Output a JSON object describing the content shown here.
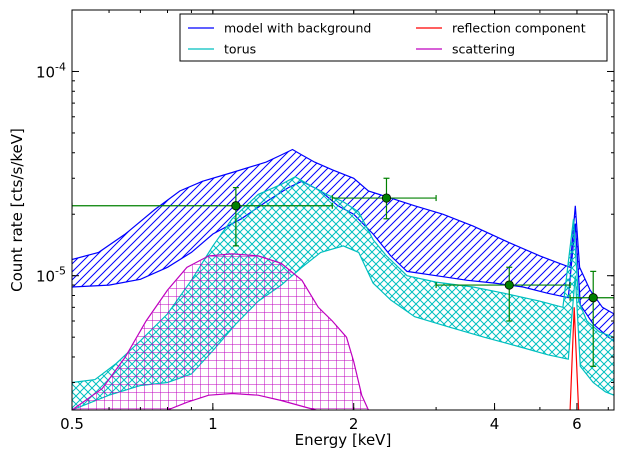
{
  "chart_data": {
    "type": "line",
    "xlabel": "Energy [keV]",
    "ylabel": "Count rate [cts/s/keV]",
    "xscale": "log",
    "yscale": "log",
    "xlim": [
      0.5,
      7.2
    ],
    "ylim": [
      2.2e-06,
      0.0002
    ],
    "xticks": [
      {
        "value": 0.5,
        "label": "0.5"
      },
      {
        "value": 1,
        "label": "1"
      },
      {
        "value": 2,
        "label": "2"
      },
      {
        "value": 4,
        "label": "4"
      },
      {
        "value": 6,
        "label": "6"
      }
    ],
    "yticks": [
      {
        "value": 1e-05,
        "base": "10",
        "exp": "-5"
      },
      {
        "value": 0.0001,
        "base": "10",
        "exp": "-4"
      }
    ],
    "legend_position": "top-right",
    "legend": [
      {
        "label": "model with background",
        "color": "#0000ff"
      },
      {
        "label": "reflection component",
        "color": "#ff0000"
      },
      {
        "label": "torus",
        "color": "#00bfbf"
      },
      {
        "label": "scattering",
        "color": "#bf00bf"
      }
    ],
    "colors": {
      "model": "#0000ff",
      "torus": "#00bfbf",
      "scattering": "#bf00bf",
      "reflection": "#ff0000",
      "data": "#008000"
    },
    "series": [
      {
        "key": "model",
        "color": "#0000ff",
        "hatch": "diag",
        "upper": [
          [
            0.5,
            1.2e-05
          ],
          [
            0.57,
            1.3e-05
          ],
          [
            0.65,
            1.6e-05
          ],
          [
            0.75,
            2.1e-05
          ],
          [
            0.85,
            2.6e-05
          ],
          [
            0.95,
            2.9e-05
          ],
          [
            1.1,
            3.2e-05
          ],
          [
            1.3,
            3.6e-05
          ],
          [
            1.4,
            3.9e-05
          ],
          [
            1.48,
            4.15e-05
          ],
          [
            1.55,
            3.9e-05
          ],
          [
            1.65,
            3.6e-05
          ],
          [
            1.8,
            3.3e-05
          ],
          [
            2.0,
            3e-05
          ],
          [
            2.15,
            2.6e-05
          ],
          [
            2.4,
            2.4e-05
          ],
          [
            2.7,
            2.2e-05
          ],
          [
            3.1,
            2e-05
          ],
          [
            3.6,
            1.75e-05
          ],
          [
            4.3,
            1.45e-05
          ],
          [
            5.0,
            1.25e-05
          ],
          [
            5.5,
            1.15e-05
          ],
          [
            5.8,
            1.1e-05
          ],
          [
            5.95,
            2.2e-05
          ],
          [
            6.08,
            1.1e-05
          ],
          [
            6.4,
            8.5e-06
          ],
          [
            6.8,
            7e-06
          ],
          [
            7.2,
            6.5e-06
          ]
        ],
        "lower": [
          [
            0.5,
            8.8e-06
          ],
          [
            0.6,
            9e-06
          ],
          [
            0.7,
            9.6e-06
          ],
          [
            0.8,
            1.1e-05
          ],
          [
            0.9,
            1.3e-05
          ],
          [
            1.0,
            1.6e-05
          ],
          [
            1.15,
            1.9e-05
          ],
          [
            1.3,
            2.3e-05
          ],
          [
            1.45,
            2.7e-05
          ],
          [
            1.55,
            2.9e-05
          ],
          [
            1.7,
            2.6e-05
          ],
          [
            1.85,
            2.2e-05
          ],
          [
            2.0,
            2e-05
          ],
          [
            2.2,
            1.6e-05
          ],
          [
            2.4,
            1.25e-05
          ],
          [
            2.6,
            1.05e-05
          ],
          [
            3.0,
            1e-05
          ],
          [
            3.5,
            9.5e-06
          ],
          [
            4.0,
            9.2e-06
          ],
          [
            4.6,
            8.8e-06
          ],
          [
            5.2,
            8.2e-06
          ],
          [
            5.75,
            7.8e-06
          ],
          [
            5.95,
            1.8e-05
          ],
          [
            6.1,
            7.2e-06
          ],
          [
            6.5,
            5.8e-06
          ],
          [
            7.0,
            5e-06
          ],
          [
            7.2,
            4.8e-06
          ]
        ]
      },
      {
        "key": "torus",
        "color": "#00bfbf",
        "hatch": "cross",
        "upper": [
          [
            0.5,
            3e-06
          ],
          [
            0.56,
            3.1e-06
          ],
          [
            0.62,
            3.7e-06
          ],
          [
            0.7,
            4.8e-06
          ],
          [
            0.8,
            6.5e-06
          ],
          [
            0.9,
            9.5e-06
          ],
          [
            1.0,
            1.4e-05
          ],
          [
            1.1,
            1.9e-05
          ],
          [
            1.25,
            2.5e-05
          ],
          [
            1.4,
            2.8e-05
          ],
          [
            1.5,
            3.05e-05
          ],
          [
            1.6,
            2.8e-05
          ],
          [
            1.75,
            2.5e-05
          ],
          [
            1.9,
            2.3e-05
          ],
          [
            2.05,
            2.05e-05
          ],
          [
            2.2,
            1.5e-05
          ],
          [
            2.35,
            1.25e-05
          ],
          [
            2.6,
            1e-05
          ],
          [
            3.0,
            9.3e-06
          ],
          [
            3.6,
            8.8e-06
          ],
          [
            4.2,
            8.2e-06
          ],
          [
            5.0,
            7.5e-06
          ],
          [
            5.6,
            7e-06
          ],
          [
            5.9,
            1.9e-05
          ],
          [
            6.05,
            7.5e-06
          ],
          [
            6.3,
            6e-06
          ],
          [
            6.7,
            5.3e-06
          ],
          [
            7.2,
            5e-06
          ]
        ],
        "lower": [
          [
            0.5,
            2.2e-06
          ],
          [
            0.6,
            2.6e-06
          ],
          [
            0.7,
            2.9e-06
          ],
          [
            0.8,
            3e-06
          ],
          [
            0.9,
            3.3e-06
          ],
          [
            1.0,
            4.3e-06
          ],
          [
            1.12,
            5.8e-06
          ],
          [
            1.25,
            7.5e-06
          ],
          [
            1.4,
            9e-06
          ],
          [
            1.55,
            1.1e-05
          ],
          [
            1.7,
            1.3e-05
          ],
          [
            1.9,
            1.4e-05
          ],
          [
            2.05,
            1.3e-05
          ],
          [
            2.2,
            9.2e-06
          ],
          [
            2.4,
            7.6e-06
          ],
          [
            2.7,
            6.3e-06
          ],
          [
            3.2,
            5.6e-06
          ],
          [
            3.8,
            5e-06
          ],
          [
            4.5,
            4.5e-06
          ],
          [
            5.2,
            4.1e-06
          ],
          [
            5.75,
            3.9e-06
          ],
          [
            5.95,
            1e-05
          ],
          [
            6.1,
            3.6e-06
          ],
          [
            6.5,
            3e-06
          ],
          [
            6.9,
            2.7e-06
          ],
          [
            7.2,
            2.6e-06
          ]
        ]
      },
      {
        "key": "scattering",
        "color": "#bf00bf",
        "hatch": "grid",
        "upper": [
          [
            0.5,
            2.2e-06
          ],
          [
            0.58,
            2.8e-06
          ],
          [
            0.65,
            4e-06
          ],
          [
            0.72,
            6e-06
          ],
          [
            0.8,
            8.5e-06
          ],
          [
            0.88,
            1.1e-05
          ],
          [
            0.98,
            1.25e-05
          ],
          [
            1.1,
            1.28e-05
          ],
          [
            1.25,
            1.25e-05
          ],
          [
            1.4,
            1.15e-05
          ],
          [
            1.55,
            9.5e-06
          ],
          [
            1.68,
            7e-06
          ],
          [
            1.8,
            6e-06
          ],
          [
            1.93,
            5e-06
          ],
          [
            2.0,
            3.8e-06
          ],
          [
            2.08,
            2.6e-06
          ],
          [
            2.15,
            2.2e-06
          ]
        ],
        "lower": [
          [
            0.5,
            2.2e-06
          ],
          [
            0.8,
            2.2e-06
          ],
          [
            0.88,
            2.4e-06
          ],
          [
            0.98,
            2.6e-06
          ],
          [
            1.1,
            2.65e-06
          ],
          [
            1.25,
            2.6e-06
          ],
          [
            1.4,
            2.45e-06
          ],
          [
            1.6,
            2.25e-06
          ],
          [
            1.8,
            2.1e-06
          ],
          [
            2.15,
            2.2e-06
          ]
        ]
      }
    ],
    "reflection": [
      [
        5.8,
        2.2e-06
      ],
      [
        5.92,
        7e-06
      ],
      [
        6.05,
        2.2e-06
      ]
    ],
    "data_points": [
      {
        "x": 1.12,
        "xerr": [
          0.5,
          1.8
        ],
        "y": 2.2e-05,
        "yerr": [
          1.4e-05,
          2.7e-05
        ]
      },
      {
        "x": 2.35,
        "xerr": [
          1.8,
          3.0
        ],
        "y": 2.4e-05,
        "yerr": [
          1.9e-05,
          3e-05
        ]
      },
      {
        "x": 4.3,
        "xerr": [
          3.0,
          5.8
        ],
        "y": 9e-06,
        "yerr": [
          6e-06,
          1.1e-05
        ]
      },
      {
        "x": 6.5,
        "xerr": [
          5.8,
          7.2
        ],
        "y": 7.8e-06,
        "yerr": [
          3.6e-06,
          1.05e-05
        ]
      }
    ]
  }
}
